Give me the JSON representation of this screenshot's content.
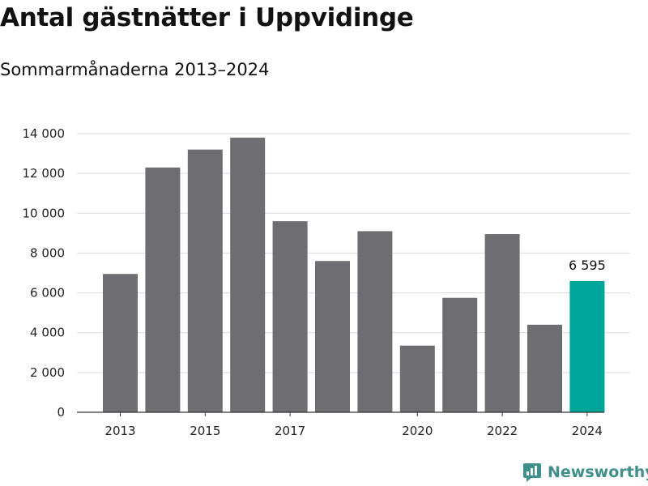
{
  "title": "Antal gästnätter i Uppvidinge",
  "subtitle": "Sommarmånaderna 2013–2024",
  "brand": {
    "name": "Newsworthy",
    "icon": "newsworthy-logo-icon"
  },
  "colors": {
    "bar": "#6e6d72",
    "highlight": "#00a59a",
    "grid": "#d9d9d9",
    "axis": "#333333",
    "brand": "#3f8f8a"
  },
  "chart_data": {
    "type": "bar",
    "title": "Antal gästnätter i Uppvidinge",
    "subtitle": "Sommarmånaderna 2013–2024",
    "xlabel": "",
    "ylabel": "",
    "categories": [
      "2013",
      "2014",
      "2015",
      "2016",
      "2017",
      "2018",
      "2019",
      "2020",
      "2021",
      "2022",
      "2023",
      "2024"
    ],
    "values": [
      6950,
      12300,
      13200,
      13800,
      9600,
      7600,
      9100,
      3350,
      5750,
      8950,
      4400,
      6595
    ],
    "highlight_index": 11,
    "data_labels": [
      {
        "index": 11,
        "text": "6 595"
      }
    ],
    "ylim": [
      0,
      14000
    ],
    "y_ticks": [
      0,
      2000,
      4000,
      6000,
      8000,
      10000,
      12000,
      14000
    ],
    "y_tick_labels": [
      "0",
      "2 000",
      "4 000",
      "6 000",
      "8 000",
      "10 000",
      "12 000",
      "14 000"
    ],
    "x_tick_labels": [
      {
        "index": 0,
        "text": "2013"
      },
      {
        "index": 2,
        "text": "2015"
      },
      {
        "index": 4,
        "text": "2017"
      },
      {
        "index": 7,
        "text": "2020"
      },
      {
        "index": 9,
        "text": "2022"
      },
      {
        "index": 11,
        "text": "2024"
      }
    ],
    "grid": true,
    "legend": "none"
  }
}
